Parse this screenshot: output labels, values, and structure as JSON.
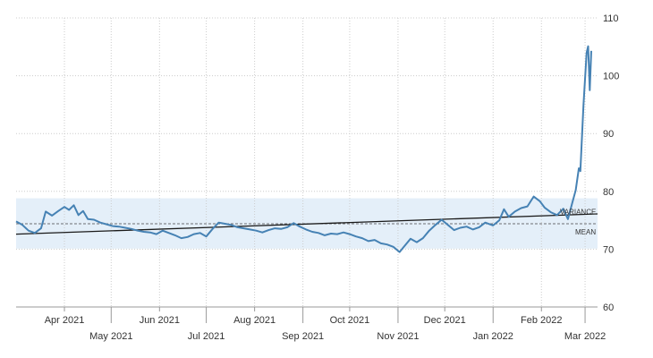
{
  "chart_data": {
    "type": "line",
    "title": "",
    "xlabel": "",
    "ylabel": "",
    "ylim": [
      60,
      110
    ],
    "yticks": [
      60,
      70,
      80,
      90,
      100,
      110
    ],
    "y_axis_side": "right",
    "grid": true,
    "xlim": [
      "2021-03-01",
      "2022-03-09"
    ],
    "xticks_upper": [
      {
        "date": "2021-04-01",
        "label": "Apr 2021"
      },
      {
        "date": "2021-06-01",
        "label": "Jun 2021"
      },
      {
        "date": "2021-08-01",
        "label": "Aug 2021"
      },
      {
        "date": "2021-10-01",
        "label": "Oct 2021"
      },
      {
        "date": "2021-12-01",
        "label": "Dec 2021"
      },
      {
        "date": "2022-02-01",
        "label": "Feb 2022"
      }
    ],
    "xticks_lower": [
      {
        "date": "2021-05-01",
        "label": "May 2021"
      },
      {
        "date": "2021-07-01",
        "label": "Jul 2021"
      },
      {
        "date": "2021-09-01",
        "label": "Sep 2021"
      },
      {
        "date": "2021-11-01",
        "label": "Nov 2021"
      },
      {
        "date": "2022-01-01",
        "label": "Jan 2022"
      },
      {
        "date": "2022-03-01",
        "label": "Mar 2022"
      }
    ],
    "series": [
      {
        "color": "#4682b4",
        "points": [
          [
            "2021-03-01",
            74.8
          ],
          [
            "2021-03-05",
            74.2
          ],
          [
            "2021-03-09",
            73.2
          ],
          [
            "2021-03-13",
            72.8
          ],
          [
            "2021-03-17",
            73.6
          ],
          [
            "2021-03-20",
            76.5
          ],
          [
            "2021-03-24",
            75.8
          ],
          [
            "2021-03-28",
            76.6
          ],
          [
            "2021-04-01",
            77.3
          ],
          [
            "2021-04-04",
            76.8
          ],
          [
            "2021-04-07",
            77.6
          ],
          [
            "2021-04-10",
            75.9
          ],
          [
            "2021-04-13",
            76.6
          ],
          [
            "2021-04-16",
            75.2
          ],
          [
            "2021-04-20",
            75.1
          ],
          [
            "2021-04-24",
            74.6
          ],
          [
            "2021-04-28",
            74.3
          ],
          [
            "2021-05-02",
            74.0
          ],
          [
            "2021-05-06",
            73.9
          ],
          [
            "2021-05-10",
            73.7
          ],
          [
            "2021-05-14",
            73.5
          ],
          [
            "2021-05-18",
            73.2
          ],
          [
            "2021-05-22",
            73.0
          ],
          [
            "2021-05-26",
            72.9
          ],
          [
            "2021-05-30",
            72.6
          ],
          [
            "2021-06-03",
            73.2
          ],
          [
            "2021-06-07",
            72.8
          ],
          [
            "2021-06-11",
            72.4
          ],
          [
            "2021-06-15",
            71.9
          ],
          [
            "2021-06-19",
            72.1
          ],
          [
            "2021-06-23",
            72.6
          ],
          [
            "2021-06-27",
            72.8
          ],
          [
            "2021-07-01",
            72.2
          ],
          [
            "2021-07-05",
            73.5
          ],
          [
            "2021-07-09",
            74.6
          ],
          [
            "2021-07-13",
            74.4
          ],
          [
            "2021-07-17",
            74.2
          ],
          [
            "2021-07-21",
            73.8
          ],
          [
            "2021-07-25",
            73.6
          ],
          [
            "2021-07-29",
            73.4
          ],
          [
            "2021-08-02",
            73.2
          ],
          [
            "2021-08-06",
            72.9
          ],
          [
            "2021-08-10",
            73.3
          ],
          [
            "2021-08-14",
            73.6
          ],
          [
            "2021-08-18",
            73.5
          ],
          [
            "2021-08-22",
            73.8
          ],
          [
            "2021-08-26",
            74.5
          ],
          [
            "2021-08-30",
            73.9
          ],
          [
            "2021-09-03",
            73.4
          ],
          [
            "2021-09-07",
            73.0
          ],
          [
            "2021-09-11",
            72.8
          ],
          [
            "2021-09-15",
            72.4
          ],
          [
            "2021-09-19",
            72.7
          ],
          [
            "2021-09-23",
            72.6
          ],
          [
            "2021-09-27",
            72.9
          ],
          [
            "2021-10-01",
            72.6
          ],
          [
            "2021-10-05",
            72.2
          ],
          [
            "2021-10-09",
            71.9
          ],
          [
            "2021-10-13",
            71.4
          ],
          [
            "2021-10-17",
            71.6
          ],
          [
            "2021-10-21",
            71.0
          ],
          [
            "2021-10-25",
            70.8
          ],
          [
            "2021-10-29",
            70.4
          ],
          [
            "2021-11-02",
            69.5
          ],
          [
            "2021-11-05",
            70.5
          ],
          [
            "2021-11-09",
            71.8
          ],
          [
            "2021-11-13",
            71.2
          ],
          [
            "2021-11-17",
            71.9
          ],
          [
            "2021-11-21",
            73.2
          ],
          [
            "2021-11-25",
            74.2
          ],
          [
            "2021-11-29",
            75.1
          ],
          [
            "2021-12-03",
            74.2
          ],
          [
            "2021-12-07",
            73.3
          ],
          [
            "2021-12-11",
            73.7
          ],
          [
            "2021-12-15",
            73.9
          ],
          [
            "2021-12-19",
            73.4
          ],
          [
            "2021-12-23",
            73.8
          ],
          [
            "2021-12-27",
            74.6
          ],
          [
            "2022-01-01",
            74.1
          ],
          [
            "2022-01-05",
            75.0
          ],
          [
            "2022-01-08",
            76.9
          ],
          [
            "2022-01-11",
            75.6
          ],
          [
            "2022-01-15",
            76.5
          ],
          [
            "2022-01-19",
            77.1
          ],
          [
            "2022-01-23",
            77.4
          ],
          [
            "2022-01-27",
            79.1
          ],
          [
            "2022-01-31",
            78.3
          ],
          [
            "2022-02-03",
            77.2
          ],
          [
            "2022-02-07",
            76.4
          ],
          [
            "2022-02-11",
            75.9
          ],
          [
            "2022-02-15",
            77.0
          ],
          [
            "2022-02-18",
            75.2
          ],
          [
            "2022-02-21",
            78.2
          ],
          [
            "2022-02-23",
            80.2
          ],
          [
            "2022-02-25",
            84.0
          ],
          [
            "2022-02-26",
            83.5
          ],
          [
            "2022-02-28",
            95.0
          ],
          [
            "2022-03-02",
            104.0
          ],
          [
            "2022-03-03",
            105.1
          ],
          [
            "2022-03-04",
            97.5
          ],
          [
            "2022-03-05",
            104.3
          ]
        ]
      }
    ],
    "mean": {
      "label": "MEAN",
      "value": 74.4,
      "color": "#444444"
    },
    "variance": {
      "label": "VARIANCE",
      "low": 70.1,
      "high": 78.8,
      "color": "#dbeaf7"
    },
    "trend": {
      "start": [
        "2021-03-01",
        72.6
      ],
      "end": [
        "2022-03-09",
        76.1
      ],
      "color": "#1a1a1a"
    }
  }
}
